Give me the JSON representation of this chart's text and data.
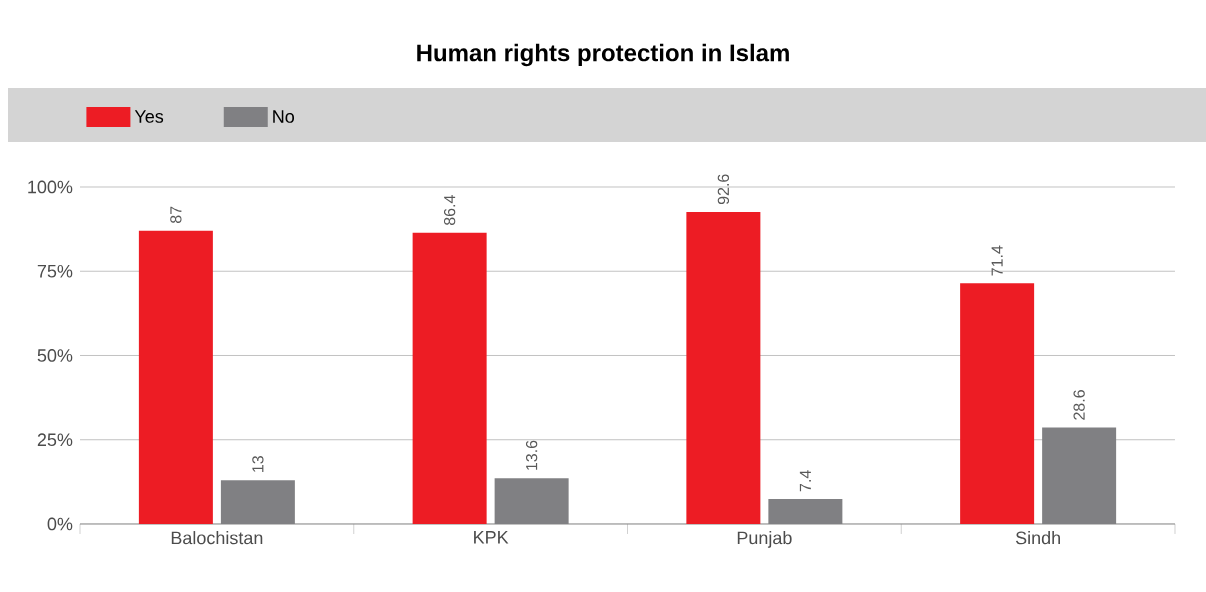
{
  "chart_data": {
    "type": "bar",
    "title": "Human rights protection in Islam",
    "categories": [
      "Balochistan",
      "KPK",
      "Punjab",
      "Sindh"
    ],
    "series": [
      {
        "name": "Yes",
        "color": "#ed1c24",
        "values": [
          87,
          86.4,
          92.6,
          71.4
        ]
      },
      {
        "name": "No",
        "color": "#808083",
        "values": [
          13,
          13.6,
          7.4,
          28.6
        ]
      }
    ],
    "ylim": [
      0,
      100
    ],
    "yticks": [
      {
        "value": 0,
        "label": "0%"
      },
      {
        "value": 25,
        "label": "25%"
      },
      {
        "value": 50,
        "label": "50%"
      },
      {
        "value": 75,
        "label": "75%"
      },
      {
        "value": 100,
        "label": "100%"
      }
    ],
    "grid": "y",
    "legend": "top left",
    "data_labels": true
  }
}
